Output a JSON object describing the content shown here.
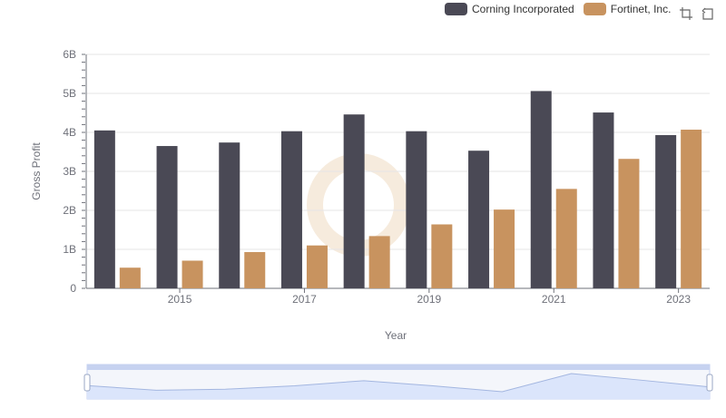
{
  "colors": {
    "corning": "#4a4955",
    "fortinet": "#c8935f",
    "grid": "#e6e6e6",
    "axis": "#6e7079",
    "zoom_fill": "#dbe5fb",
    "zoom_border": "#c6d2f0",
    "zoom_line": "#a3b6e0"
  },
  "legend": {
    "items": [
      {
        "name": "Corning Incorporated",
        "color": "#4a4955"
      },
      {
        "name": "Fortinet, Inc.",
        "color": "#c8935f"
      }
    ]
  },
  "toolbox": {
    "zoom_icon": "zoom-icon",
    "reset_icon": "restore-icon"
  },
  "chart_data": {
    "type": "bar",
    "categories": [
      "2014",
      "2015",
      "2016",
      "2017",
      "2018",
      "2019",
      "2020",
      "2021",
      "2022",
      "2023"
    ],
    "x_tick_labels": [
      "2015",
      "2017",
      "2019",
      "2021",
      "2023"
    ],
    "series": [
      {
        "name": "Corning Incorporated",
        "values": [
          4.05,
          3.65,
          3.74,
          4.03,
          4.46,
          4.03,
          3.53,
          5.06,
          4.51,
          3.93
        ]
      },
      {
        "name": "Fortinet, Inc.",
        "values": [
          0.53,
          0.71,
          0.93,
          1.1,
          1.34,
          1.64,
          2.02,
          2.55,
          3.32,
          4.07
        ]
      }
    ],
    "unit": "B",
    "ylim": [
      0,
      6
    ],
    "y_ticks": [
      "0",
      "1B",
      "2B",
      "3B",
      "4B",
      "5B",
      "6B"
    ],
    "xlabel": "Year",
    "ylabel": "Gross Profit",
    "grid": true,
    "legend_position": "top-right",
    "data_zoom": {
      "start": 0,
      "end": 100
    }
  }
}
